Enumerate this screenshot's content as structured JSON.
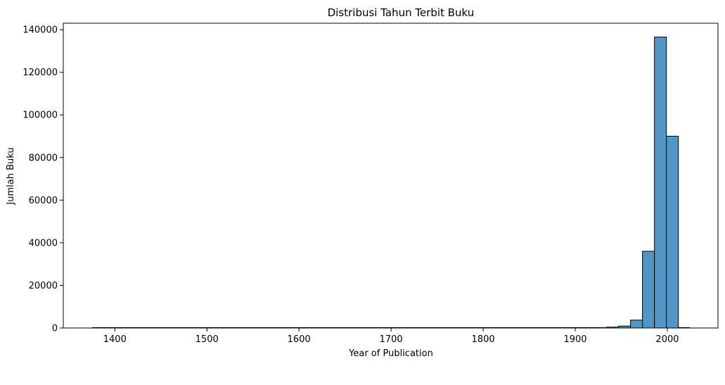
{
  "chart_data": {
    "type": "bar",
    "title": "Distribusi Tahun Terbit Buku",
    "xlabel": "Year of Publication",
    "ylabel": "Jumlah Buku",
    "xlim": [
      1344,
      2055
    ],
    "ylim": [
      0,
      143000
    ],
    "xticks": [
      1400,
      1500,
      1600,
      1700,
      1800,
      1900,
      2000
    ],
    "yticks": [
      0,
      20000,
      40000,
      60000,
      80000,
      100000,
      120000,
      140000
    ],
    "grid": false,
    "bar_color": "#5296c6",
    "edge_color": "#000000",
    "bins": [
      {
        "x0": 1376,
        "x1": 1934,
        "value": 0
      },
      {
        "x0": 1934,
        "x1": 1947,
        "value": 400
      },
      {
        "x0": 1947,
        "x1": 1960,
        "value": 900
      },
      {
        "x0": 1960,
        "x1": 1973,
        "value": 3700
      },
      {
        "x0": 1973,
        "x1": 1986,
        "value": 36000
      },
      {
        "x0": 1986,
        "x1": 1999,
        "value": 136500
      },
      {
        "x0": 1999,
        "x1": 2012,
        "value": 90000
      },
      {
        "x0": 2012,
        "x1": 2024,
        "value": 0
      }
    ]
  }
}
